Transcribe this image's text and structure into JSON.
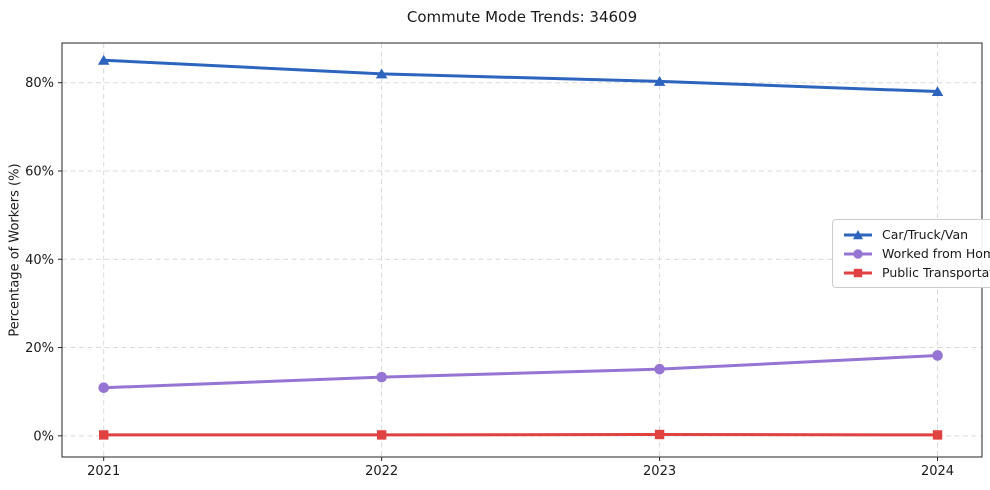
{
  "chart_data": {
    "type": "line",
    "title": "Commute Mode Trends: 34609",
    "xlabel": "",
    "ylabel": "Percentage of Workers (%)",
    "x": [
      2021,
      2022,
      2023,
      2024
    ],
    "x_tick_labels": [
      "2021",
      "2022",
      "2023",
      "2024"
    ],
    "y_ticks": [
      0,
      20,
      40,
      60,
      80
    ],
    "y_tick_labels": [
      "0%",
      "20%",
      "40%",
      "60%",
      "80%"
    ],
    "xlim": [
      2020.85,
      2024.16
    ],
    "ylim": [
      -4.8,
      89.0
    ],
    "grid": true,
    "grid_style": "dashed",
    "legend_position": "center-right inside plot",
    "series": [
      {
        "name": "Car/Truck/Van",
        "color": "#2d64be",
        "marker": "triangle",
        "values": [
          85.1,
          82.0,
          80.3,
          78.0
        ]
      },
      {
        "name": "Worked from Home",
        "color": "#9674d4",
        "marker": "circle",
        "values": [
          10.9,
          13.3,
          15.1,
          18.2
        ]
      },
      {
        "name": "Public Transportation",
        "color": "#e04141",
        "marker": "square",
        "values": [
          0.2,
          0.2,
          0.3,
          0.2
        ]
      }
    ]
  },
  "style": {
    "background": "#ffffff",
    "grid_color": "#d9d9d9",
    "spine_color": "#262626",
    "text_color": "#1a1a1a",
    "legend_border": "#cccccc",
    "legend_background": "#ffffff"
  }
}
